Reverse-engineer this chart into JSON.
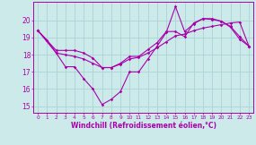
{
  "xlabel": "Windchill (Refroidissement éolien,°C)",
  "background_color": "#cceaea",
  "grid_color": "#aad4d4",
  "line_color": "#aa00aa",
  "xlim": [
    -0.5,
    23.5
  ],
  "ylim": [
    14.6,
    21.1
  ],
  "xticks": [
    0,
    1,
    2,
    3,
    4,
    5,
    6,
    7,
    8,
    9,
    10,
    11,
    12,
    13,
    14,
    15,
    16,
    17,
    18,
    19,
    20,
    21,
    22,
    23
  ],
  "yticks": [
    15,
    16,
    17,
    18,
    19,
    20
  ],
  "line1_x": [
    0,
    1,
    2,
    3,
    4,
    5,
    6,
    7,
    8,
    9,
    10,
    11,
    12,
    13,
    14,
    15,
    16,
    17,
    18,
    19,
    20,
    21,
    22,
    23
  ],
  "line1_y": [
    19.4,
    18.85,
    18.1,
    17.3,
    17.3,
    16.6,
    16.0,
    15.1,
    15.4,
    15.85,
    17.0,
    17.0,
    17.75,
    18.5,
    19.3,
    20.8,
    19.35,
    19.8,
    20.1,
    20.05,
    19.95,
    19.6,
    18.9,
    18.5
  ],
  "line2_x": [
    0,
    2,
    3,
    4,
    5,
    6,
    7,
    8,
    9,
    10,
    11,
    12,
    13,
    14,
    15,
    16,
    17,
    18,
    19,
    20,
    21,
    22,
    23
  ],
  "line2_y": [
    19.4,
    18.25,
    18.25,
    18.25,
    18.1,
    17.8,
    17.25,
    17.25,
    17.5,
    17.9,
    17.9,
    18.3,
    18.7,
    19.35,
    19.35,
    19.05,
    19.85,
    20.1,
    20.1,
    19.95,
    19.65,
    19.05,
    18.5
  ],
  "line3_x": [
    0,
    2,
    3,
    4,
    5,
    6,
    7,
    8,
    9,
    10,
    11,
    12,
    13,
    14,
    15,
    16,
    17,
    18,
    19,
    20,
    21,
    22,
    23
  ],
  "line3_y": [
    19.4,
    18.1,
    18.0,
    17.9,
    17.75,
    17.5,
    17.25,
    17.25,
    17.45,
    17.75,
    17.85,
    18.1,
    18.4,
    18.75,
    19.1,
    19.2,
    19.4,
    19.55,
    19.65,
    19.75,
    19.85,
    19.9,
    18.5
  ]
}
